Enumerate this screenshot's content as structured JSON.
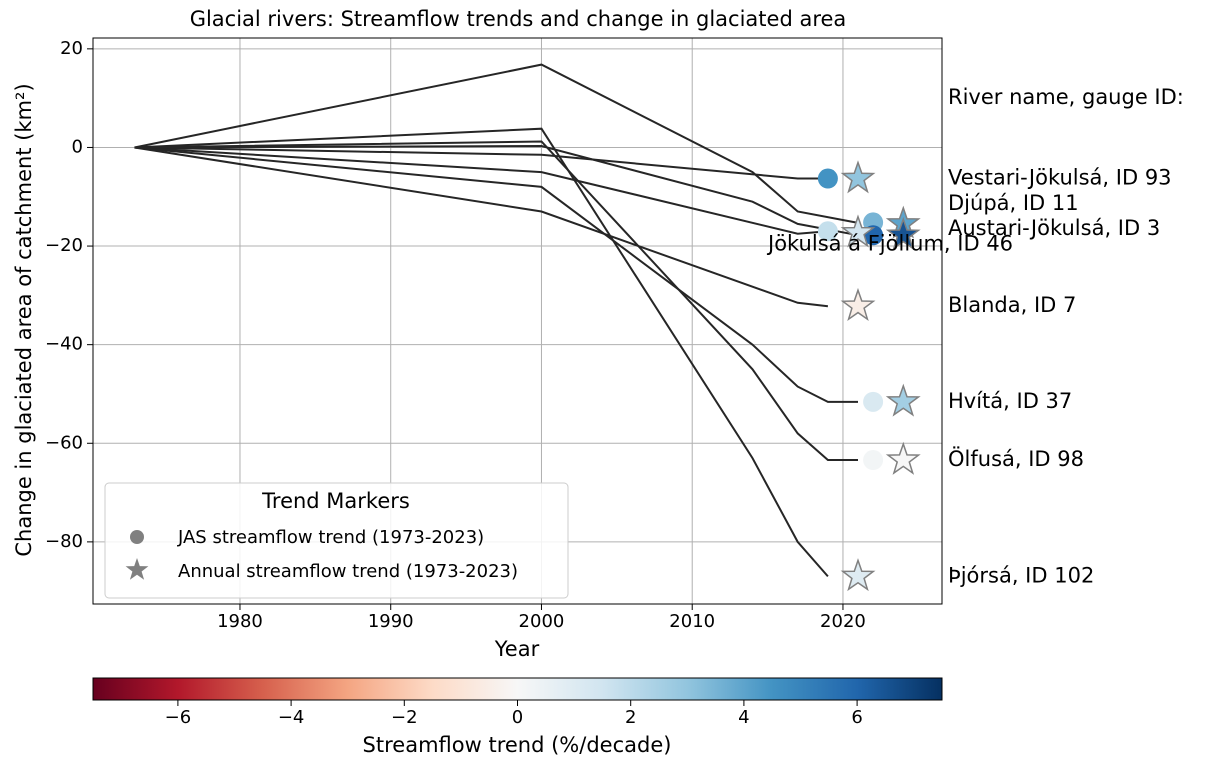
{
  "chart_data": {
    "type": "line",
    "title": "Glacial rivers: Streamflow trends and change in glaciated area",
    "x_label": "Year",
    "y_label": "Change in glaciated area of catchment (km²)",
    "xlim": [
      1970.25,
      2026.57
    ],
    "ylim": [
      -92.6,
      22.2
    ],
    "xticks": [
      1980,
      1990,
      2000,
      2010,
      2020
    ],
    "yticks": [
      {
        "value": -80,
        "label": "−80"
      },
      {
        "value": -60,
        "label": "−60"
      },
      {
        "value": -40,
        "label": "−40"
      },
      {
        "value": -20,
        "label": "−20"
      },
      0,
      20
    ],
    "grid": true,
    "line_color": "#262626",
    "river_header": "River name, gauge ID:",
    "legend": {
      "title": "Trend Markers",
      "position": "lower left",
      "items": [
        "JAS streamflow trend (1973-2023)",
        "Annual streamflow trend (1973-2023)"
      ],
      "color": "#808080"
    },
    "colorbar": {
      "label": "Streamflow trend (%/decade)",
      "lim": [
        -7.5,
        7.5
      ],
      "ticks": [
        {
          "value": -6,
          "label": "−6"
        },
        {
          "value": -4,
          "label": "−4"
        },
        {
          "value": -2,
          "label": "−2"
        },
        0,
        2,
        4,
        6
      ]
    },
    "series": [
      {
        "name": "Vestari-Jökulsá, ID 93",
        "x": [
          1973,
          2000,
          2017,
          2019
        ],
        "values": [
          0,
          -1.5,
          -6.3,
          -6.3
        ],
        "jas": {
          "x": 2019,
          "y": -6.3,
          "trend": 4.5
        },
        "annual": {
          "x": 2021,
          "y": -6.3,
          "trend": 3.0
        }
      },
      {
        "name": "Djúpá, ID 11",
        "x": [
          1973,
          2000,
          2014,
          2017,
          2021
        ],
        "values": [
          0,
          16.8,
          -5,
          -13,
          -15.3
        ],
        "jas": {
          "x": 2022,
          "y": -15.2,
          "trend": 3.5
        },
        "annual": {
          "x": 2024,
          "y": -15.5,
          "trend": 4.0
        }
      },
      {
        "name": "Austari-Jökulsá, ID 3",
        "x": [
          1973,
          2000,
          2014,
          2017,
          2021
        ],
        "values": [
          0,
          0.3,
          -11,
          -15.5,
          -17.8
        ],
        "jas": {
          "x": 2022,
          "y": -17.8,
          "trend": 6.0
        },
        "annual": {
          "x": 2024,
          "y": -17.8,
          "trend": 6.5
        }
      },
      {
        "name": "Jökulsá á Fjöllum, ID 46",
        "x": [
          1973,
          2000,
          2017,
          2019
        ],
        "values": [
          0,
          -5,
          -17.5,
          -17
        ],
        "jas": {
          "x": 2019,
          "y": -17,
          "trend": 1.8
        },
        "annual": {
          "x": 2021,
          "y": -17.3,
          "trend": 1.4
        }
      },
      {
        "name": "Blanda, ID 7",
        "x": [
          1973,
          2000,
          2017,
          2019
        ],
        "values": [
          0,
          -13,
          -31.5,
          -32.2
        ],
        "annual": {
          "x": 2021,
          "y": -32.2,
          "trend": -0.5
        }
      },
      {
        "name": "Hvítá, ID 37",
        "x": [
          1973,
          2000,
          2014,
          2017,
          2019,
          2021
        ],
        "values": [
          0,
          -8,
          -40,
          -48.5,
          -51.6,
          -51.6
        ],
        "jas": {
          "x": 2022,
          "y": -51.6,
          "trend": 1.2
        },
        "annual": {
          "x": 2024,
          "y": -51.6,
          "trend": 2.6
        }
      },
      {
        "name": "Ölfusá, ID 98",
        "x": [
          1973,
          2000,
          2014,
          2017,
          2019,
          2021
        ],
        "values": [
          0,
          1.2,
          -45,
          -58,
          -63.4,
          -63.4
        ],
        "jas": {
          "x": 2022,
          "y": -63.4,
          "trend": 0.2
        },
        "annual": {
          "x": 2024,
          "y": -63.4,
          "trend": 0.0
        }
      },
      {
        "name": "Þjórsá, ID 102",
        "x": [
          1973,
          2000,
          2014,
          2017,
          2019
        ],
        "values": [
          0,
          3.8,
          -63,
          -80,
          -87
        ],
        "annual": {
          "x": 2021,
          "y": -87,
          "trend": 1.0
        }
      }
    ]
  }
}
